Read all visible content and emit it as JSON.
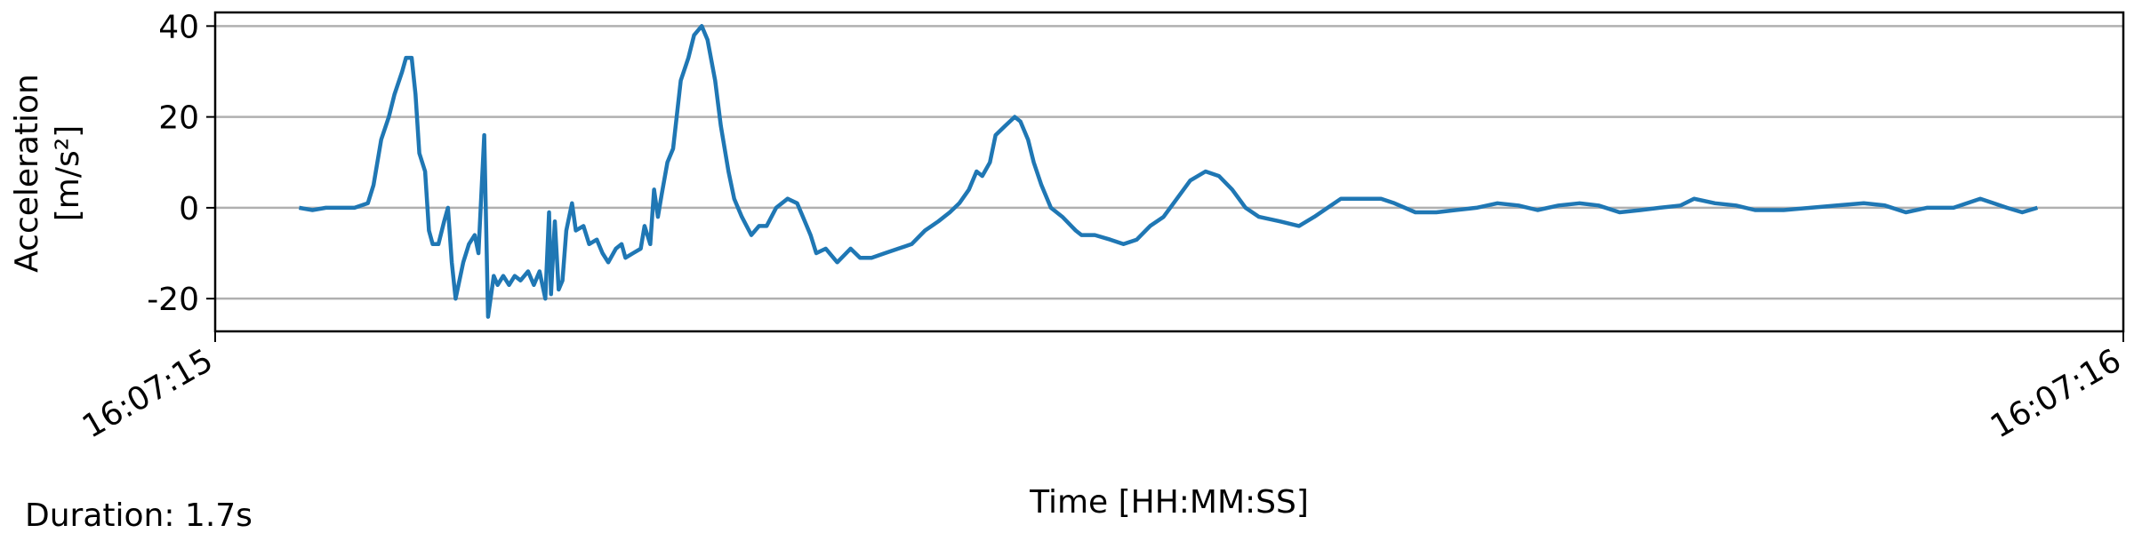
{
  "chart_data": {
    "type": "line",
    "y_label": [
      "Acceleration",
      "[m/s²]"
    ],
    "x_label": "Time [HH:MM:SS]",
    "annotation": "Duration: 1.7s",
    "x": [
      0.044,
      0.051,
      0.058,
      0.066,
      0.073,
      0.08,
      0.083,
      0.087,
      0.091,
      0.094,
      0.098,
      0.1,
      0.103,
      0.105,
      0.107,
      0.11,
      0.112,
      0.114,
      0.117,
      0.12,
      0.122,
      0.124,
      0.126,
      0.13,
      0.133,
      0.136,
      0.138,
      0.141,
      0.143,
      0.146,
      0.148,
      0.151,
      0.154,
      0.157,
      0.16,
      0.164,
      0.167,
      0.17,
      0.173,
      0.175,
      0.176,
      0.178,
      0.18,
      0.182,
      0.184,
      0.187,
      0.189,
      0.193,
      0.196,
      0.2,
      0.203,
      0.206,
      0.21,
      0.213,
      0.215,
      0.219,
      0.223,
      0.225,
      0.228,
      0.23,
      0.232,
      0.234,
      0.237,
      0.24,
      0.244,
      0.248,
      0.251,
      0.255,
      0.258,
      0.262,
      0.265,
      0.269,
      0.272,
      0.276,
      0.281,
      0.285,
      0.289,
      0.294,
      0.3,
      0.305,
      0.308,
      0.312,
      0.315,
      0.32,
      0.326,
      0.333,
      0.338,
      0.344,
      0.351,
      0.358,
      0.365,
      0.372,
      0.379,
      0.385,
      0.39,
      0.395,
      0.399,
      0.402,
      0.406,
      0.409,
      0.414,
      0.419,
      0.422,
      0.426,
      0.429,
      0.433,
      0.438,
      0.444,
      0.451,
      0.454,
      0.461,
      0.469,
      0.476,
      0.483,
      0.49,
      0.497,
      0.504,
      0.511,
      0.519,
      0.526,
      0.533,
      0.54,
      0.547,
      0.558,
      0.568,
      0.576,
      0.583,
      0.59,
      0.601,
      0.611,
      0.618,
      0.629,
      0.64,
      0.65,
      0.661,
      0.672,
      0.683,
      0.693,
      0.704,
      0.715,
      0.725,
      0.736,
      0.747,
      0.757,
      0.768,
      0.775,
      0.786,
      0.797,
      0.807,
      0.822,
      0.836,
      0.85,
      0.864,
      0.875,
      0.886,
      0.897,
      0.911,
      0.925,
      0.932,
      0.939,
      0.947,
      0.955
    ],
    "series": [
      {
        "color": "#1f77b4",
        "values": [
          0,
          -0.5,
          0,
          0,
          0,
          1,
          5,
          15,
          20,
          25,
          30,
          33,
          33,
          25,
          12,
          8,
          -5,
          -8,
          -8,
          -3,
          0,
          -12,
          -20,
          -12,
          -8,
          -6,
          -10,
          16,
          -24,
          -15,
          -17,
          -15,
          -17,
          -15,
          -16,
          -14,
          -17,
          -14,
          -20,
          -1,
          -19,
          -3,
          -18,
          -16,
          -5,
          1,
          -5,
          -4,
          -8,
          -7,
          -10,
          -12,
          -9,
          -8,
          -11,
          -10,
          -9,
          -4,
          -8,
          4,
          -2,
          3,
          10,
          13,
          28,
          33,
          38,
          40,
          37,
          28,
          18,
          8,
          2,
          -2,
          -6,
          -4,
          -4,
          0,
          2,
          1,
          -2,
          -6,
          -10,
          -9,
          -12,
          -9,
          -11,
          -11,
          -10,
          -9,
          -8,
          -5,
          -3,
          -1,
          1,
          4,
          8,
          7,
          10,
          16,
          18,
          20,
          19,
          15,
          10,
          5,
          0,
          -2,
          -5,
          -6,
          -6,
          -7,
          -8,
          -7,
          -4,
          -2,
          2,
          6,
          8,
          7,
          4,
          0,
          -2,
          -3,
          -4,
          -2,
          0,
          2,
          2,
          2,
          1,
          -1,
          -1,
          -0.5,
          0,
          1,
          0.5,
          -0.5,
          0.5,
          1,
          0.5,
          -1,
          -0.5,
          0,
          0.5,
          2,
          1,
          0.5,
          -0.5,
          -0.5,
          0,
          0.5,
          1,
          0.5,
          -1,
          0,
          0,
          2,
          1,
          0,
          -1,
          0
        ]
      }
    ],
    "xlim": [
      0,
      1
    ],
    "xticks": [
      {
        "value": 0,
        "label": "16:07:15"
      },
      {
        "value": 1,
        "label": "16:07:16"
      }
    ],
    "ylim": [
      -27.2,
      43
    ],
    "yticks": [
      -20,
      0,
      20,
      40
    ],
    "grid": true
  }
}
